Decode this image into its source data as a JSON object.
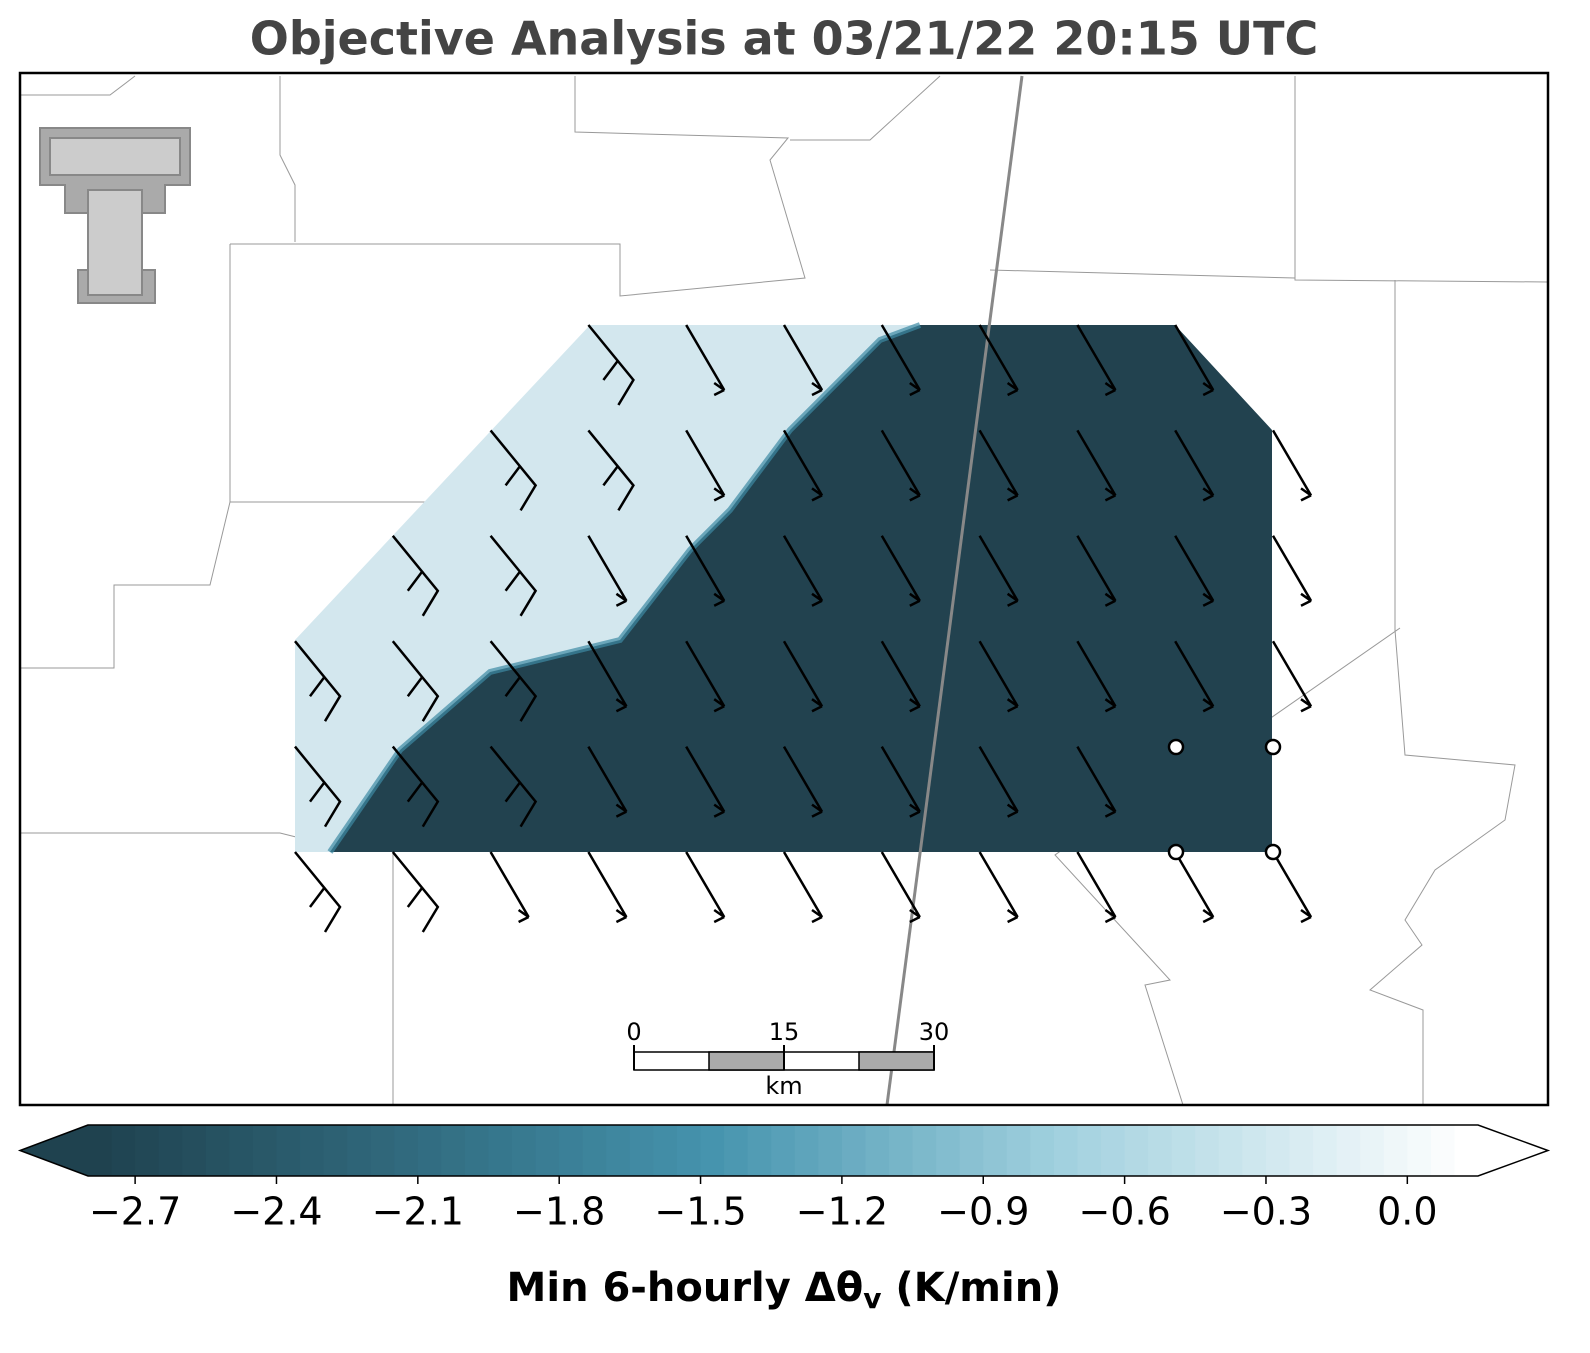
{
  "title": "Objective Analysis at 03/21/22 20:15 UTC",
  "scale_bar": {
    "ticks": [
      0,
      15,
      30
    ],
    "unit": "km"
  },
  "colorbar": {
    "label": "Min 6-hourly Δθ",
    "label_sub": "v",
    "label_suffix": " (K/min)",
    "lim": [
      -2.8,
      0.15
    ],
    "ticks": [
      {
        "value": -2.7,
        "label": "−2.7"
      },
      {
        "value": -2.4,
        "label": "−2.4"
      },
      {
        "value": -2.1,
        "label": "−2.1"
      },
      {
        "value": -1.8,
        "label": "−1.8"
      },
      {
        "value": -1.5,
        "label": "−1.5"
      },
      {
        "value": -1.2,
        "label": "−1.2"
      },
      {
        "value": -0.9,
        "label": "−0.9"
      },
      {
        "value": -0.6,
        "label": "−0.6"
      },
      {
        "value": -0.3,
        "label": "−0.3"
      },
      {
        "value": 0.0,
        "label": "0.0"
      }
    ]
  }
}
